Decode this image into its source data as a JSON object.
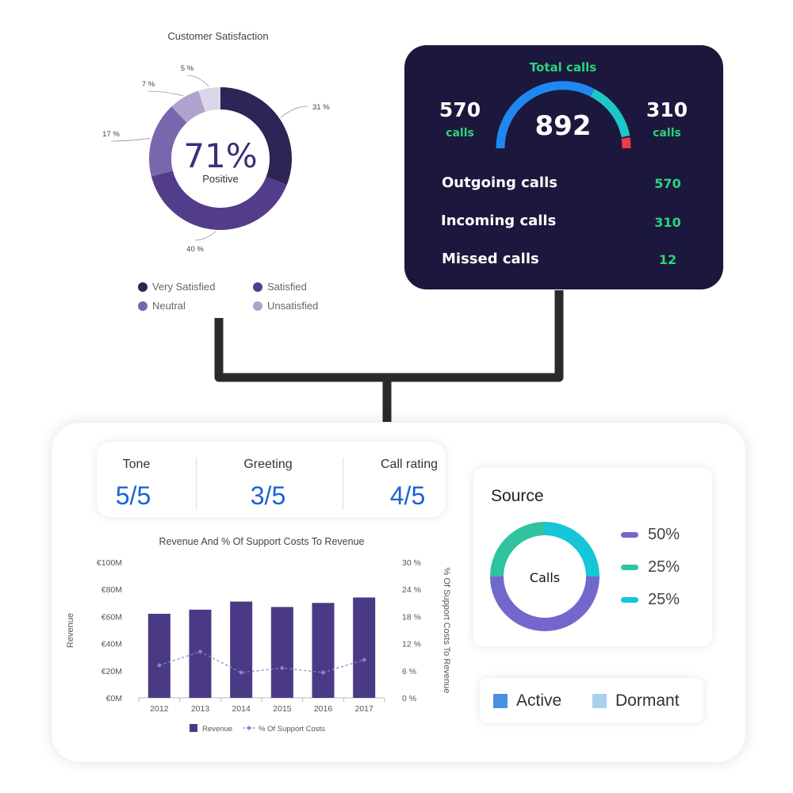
{
  "satisfaction": {
    "title": "Customer Satisfaction",
    "center_value": "71%",
    "center_label": "Positive",
    "colors": {
      "very_satisfied": "#2e2456",
      "satisfied": "#523d8b",
      "neutral": "#7867ad",
      "unsatisfied": "#ada3cc",
      "other": "#dcd7e8"
    },
    "legend": [
      {
        "label": "Very Satisfied",
        "color": "#2e2456"
      },
      {
        "label": "Satisfied",
        "color": "#523d8b"
      },
      {
        "label": "Neutral",
        "color": "#7867ad"
      },
      {
        "label": "Unsatisfied",
        "color": "#ada3cc"
      }
    ]
  },
  "calls": {
    "title": "Total calls",
    "total": "892",
    "left_value": "570",
    "left_unit": "calls",
    "right_value": "310",
    "right_unit": "calls",
    "rows": [
      {
        "label": "Outgoing calls",
        "value": "570"
      },
      {
        "label": "Incoming calls",
        "value": "310"
      },
      {
        "label": "Missed calls",
        "value": "12"
      }
    ],
    "colors": {
      "background": "#1c173d",
      "accent": "#2bd47a",
      "gauge_blue": "#1e88f0",
      "gauge_teal": "#1cc6c9",
      "gauge_red": "#ee3b4a"
    }
  },
  "scores": [
    {
      "label": "Tone",
      "value": "5/5"
    },
    {
      "label": "Greeting",
      "value": "3/5"
    },
    {
      "label": "Call rating",
      "value": "4/5"
    }
  ],
  "source": {
    "title": "Source",
    "center_label": "Calls",
    "items": [
      {
        "label": "50%",
        "color": "#7467cb"
      },
      {
        "label": "25%",
        "color": "#2fc3a0"
      },
      {
        "label": "25%",
        "color": "#14c6d8"
      }
    ]
  },
  "status": {
    "items": [
      {
        "label": "Active",
        "color": "#4a90e2"
      },
      {
        "label": "Dormant",
        "color": "#a8d2ec"
      }
    ]
  },
  "chart_data": [
    {
      "type": "pie",
      "title": "Customer Satisfaction",
      "categories": [
        "Very Satisfied",
        "Satisfied",
        "Neutral",
        "Unsatisfied",
        ""
      ],
      "values": [
        31,
        40,
        17,
        7,
        5
      ],
      "labels": [
        "31 %",
        "40 %",
        "17 %",
        "7 %",
        "5 %"
      ]
    },
    {
      "type": "bar",
      "title": "Revenue And % Of Support Costs To Revenue",
      "categories": [
        "2012",
        "2013",
        "2014",
        "2015",
        "2016",
        "2017"
      ],
      "ylabel": "Revenue",
      "y2label": "% Of Support Costs To Revenue",
      "ylim": [
        0,
        100
      ],
      "y2lim": [
        0,
        30
      ],
      "yticks": [
        "€0M",
        "€20M",
        "€40M",
        "€60M",
        "€80M",
        "€100M"
      ],
      "y2ticks": [
        "0 %",
        "6 %",
        "12 %",
        "18 %",
        "24 %",
        "30 %"
      ],
      "series": [
        {
          "name": "Revenue",
          "type": "bar",
          "values": [
            62,
            65,
            71,
            67,
            70,
            74
          ],
          "color": "#4a3a85"
        },
        {
          "name": "% Of Support Costs",
          "type": "line",
          "values": [
            7.2,
            10.2,
            5.6,
            6.6,
            5.6,
            8.4
          ],
          "color": "#8a80d8"
        }
      ],
      "legend": "bottom"
    },
    {
      "type": "pie",
      "title": "Source",
      "values": [
        50,
        25,
        25
      ],
      "labels": [
        "50%",
        "25%",
        "25%"
      ]
    }
  ]
}
